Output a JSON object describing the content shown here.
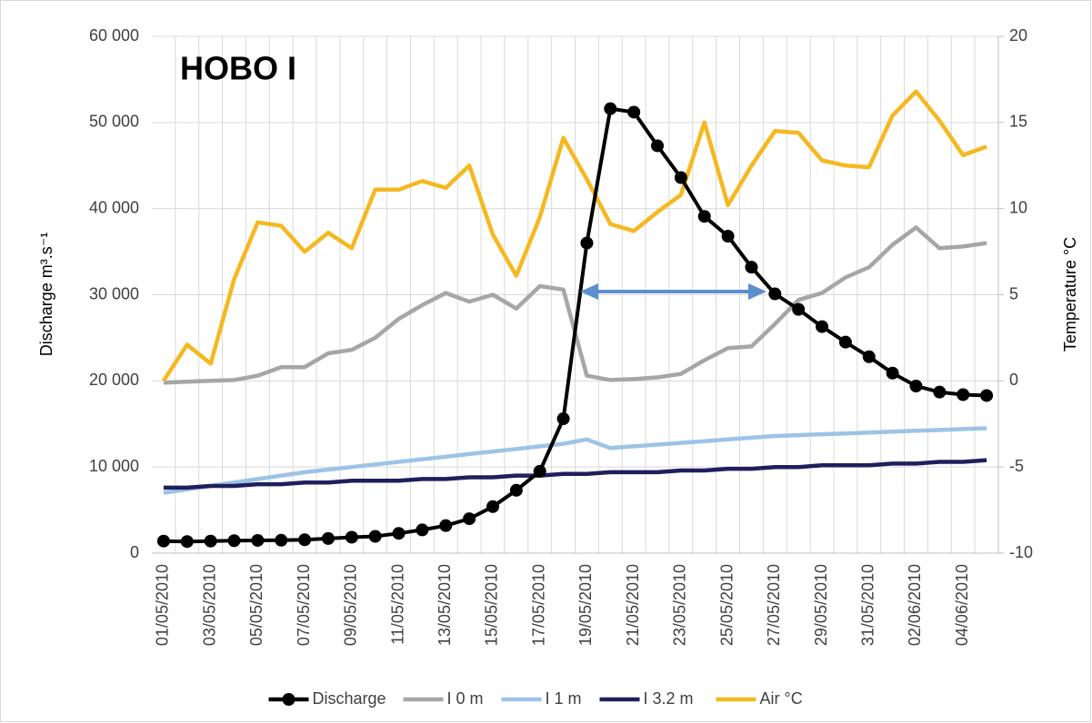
{
  "chart_data": {
    "type": "line",
    "title": "HOBO I",
    "y_label": "Discharge m³.s⁻¹",
    "y2_label": "Temperature °C",
    "categories": [
      "01/05/2010",
      null,
      "03/05/2010",
      null,
      "05/05/2010",
      null,
      "07/05/2010",
      null,
      "09/05/2010",
      null,
      "11/05/2010",
      null,
      "13/05/2010",
      null,
      "15/05/2010",
      null,
      "17/05/2010",
      null,
      "19/05/2010",
      null,
      "21/05/2010",
      null,
      "23/05/2010",
      null,
      "25/05/2010",
      null,
      "27/05/2010",
      null,
      "29/05/2010",
      null,
      "31/05/2010",
      null,
      "02/06/2010",
      null,
      "04/06/2010",
      null
    ],
    "ylim": [
      0,
      60000
    ],
    "yticks": [
      0,
      {
        "value": 10000,
        "label": "10 000"
      },
      {
        "value": 20000,
        "label": "20 000"
      },
      {
        "value": 30000,
        "label": "30 000"
      },
      {
        "value": 40000,
        "label": "40 000"
      },
      {
        "value": 50000,
        "label": "50 000"
      },
      {
        "value": 60000,
        "label": "60 000"
      }
    ],
    "y2lim": [
      -10,
      20
    ],
    "y2ticks": [
      -10,
      -5,
      0,
      5,
      10,
      15,
      20
    ],
    "grid": true,
    "legend": "bottom",
    "series": [
      {
        "name": "Discharge",
        "color": "#000000",
        "markers": true,
        "values": [
          1400,
          1350,
          1400,
          1450,
          1480,
          1500,
          1550,
          1700,
          1850,
          1950,
          2300,
          2700,
          3200,
          4000,
          5400,
          7300,
          9500,
          15600,
          36000,
          51600,
          51200,
          47300,
          43600,
          39100,
          36800,
          33200,
          30100,
          28300,
          26300,
          24500,
          22800,
          20900,
          19400,
          18700,
          18400,
          18300
        ]
      },
      {
        "name": "I 0 m",
        "color": "#a6a6a6",
        "axis": "y2",
        "values": [
          -0.1,
          -0.05,
          0,
          0.05,
          0.3,
          0.8,
          0.8,
          1.6,
          1.8,
          2.5,
          3.6,
          4.4,
          5.1,
          4.6,
          5.0,
          4.2,
          5.5,
          5.3,
          0.3,
          0.05,
          0.1,
          0.2,
          0.4,
          1.2,
          1.9,
          2.0,
          3.3,
          4.7,
          5.1,
          6.0,
          6.6,
          7.9,
          8.9,
          7.7,
          7.8,
          8.0
        ]
      },
      {
        "name": "I 1 m",
        "color": "#9dc3e6",
        "axis": "y2",
        "values": [
          -6.5,
          -6.3,
          -6.1,
          -5.9,
          -5.7,
          -5.5,
          -5.3,
          -5.15,
          -5.0,
          -4.85,
          -4.7,
          -4.55,
          -4.4,
          -4.25,
          -4.1,
          -3.95,
          -3.8,
          -3.65,
          -3.4,
          -3.9,
          -3.8,
          -3.7,
          -3.6,
          -3.5,
          -3.4,
          -3.3,
          -3.2,
          -3.15,
          -3.1,
          -3.05,
          -3.0,
          -2.95,
          -2.9,
          -2.85,
          -2.8,
          -2.75
        ]
      },
      {
        "name": "I 3.2 m",
        "color": "#1f1f5e",
        "axis": "y2",
        "values": [
          -6.2,
          -6.2,
          -6.1,
          -6.1,
          -6.0,
          -6.0,
          -5.9,
          -5.9,
          -5.8,
          -5.8,
          -5.8,
          -5.7,
          -5.7,
          -5.6,
          -5.6,
          -5.5,
          -5.5,
          -5.4,
          -5.4,
          -5.3,
          -5.3,
          -5.3,
          -5.2,
          -5.2,
          -5.1,
          -5.1,
          -5.0,
          -5.0,
          -4.9,
          -4.9,
          -4.9,
          -4.8,
          -4.8,
          -4.7,
          -4.7,
          -4.6
        ]
      },
      {
        "name": "Air °C",
        "color": "#f5b820",
        "axis": "y2",
        "values": [
          0.0,
          2.1,
          1.0,
          5.9,
          9.2,
          9.0,
          7.5,
          8.6,
          7.7,
          11.1,
          11.1,
          11.6,
          11.2,
          12.5,
          8.5,
          6.1,
          9.5,
          14.1,
          11.7,
          9.1,
          8.7,
          9.8,
          10.8,
          15.0,
          10.2,
          12.5,
          14.5,
          14.4,
          12.8,
          12.5,
          12.4,
          15.4,
          16.8,
          15.1,
          13.1,
          13.6
        ]
      }
    ]
  }
}
